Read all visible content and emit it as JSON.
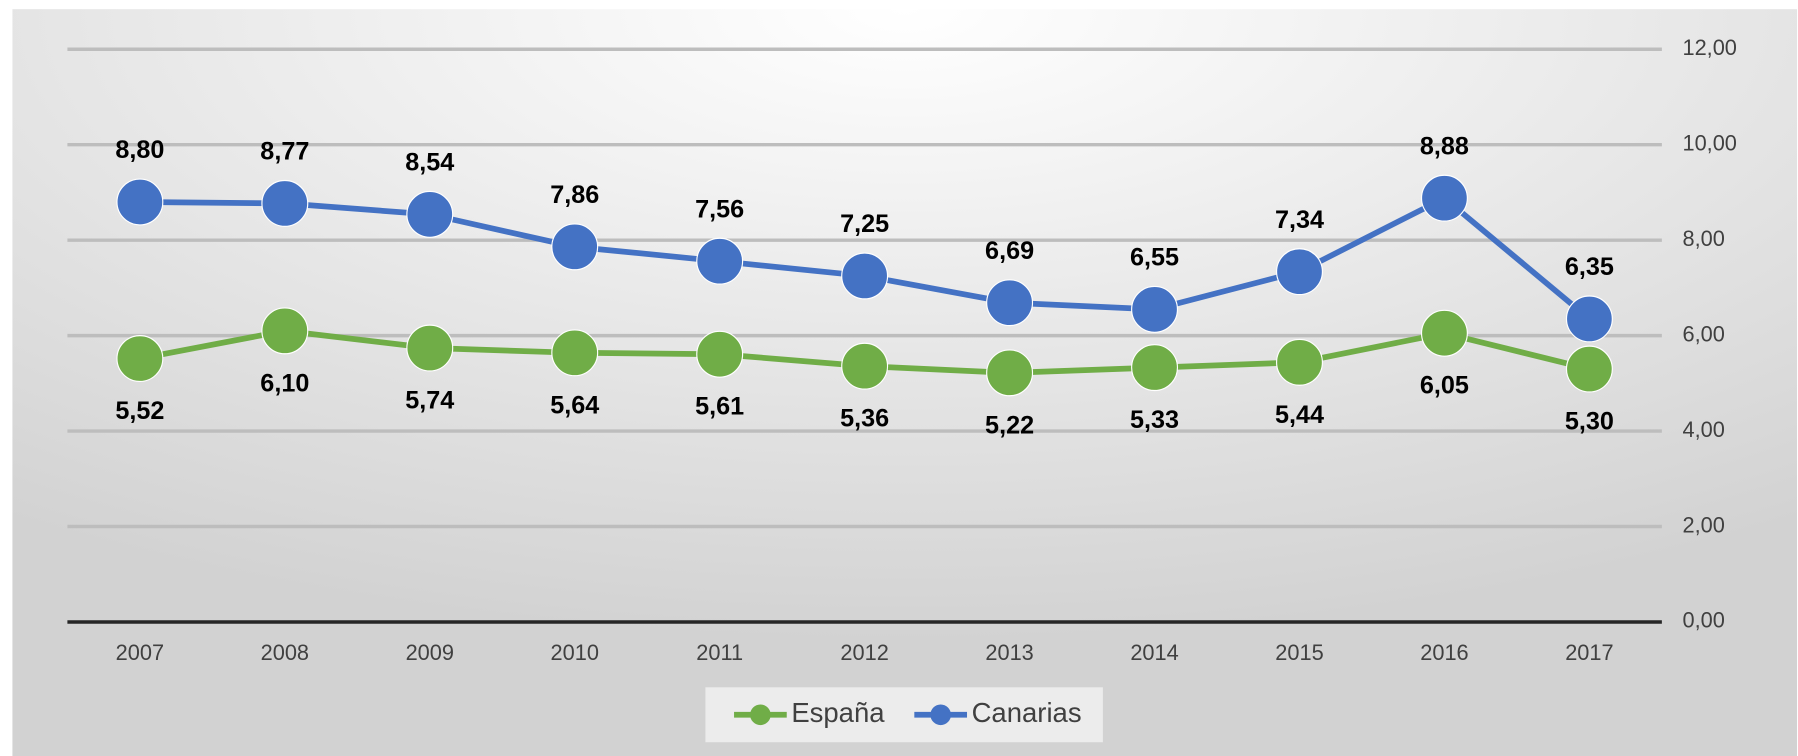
{
  "chart_data": {
    "type": "line",
    "categories": [
      "2007",
      "2008",
      "2009",
      "2010",
      "2011",
      "2012",
      "2013",
      "2014",
      "2015",
      "2016",
      "2017"
    ],
    "series": [
      {
        "name": "España",
        "color": "#70ad47",
        "label_position": "below",
        "values": [
          5.52,
          6.1,
          5.74,
          5.64,
          5.61,
          5.36,
          5.22,
          5.33,
          5.44,
          6.05,
          5.3
        ],
        "value_labels": [
          "5,52",
          "6,10",
          "5,74",
          "5,64",
          "5,61",
          "5,36",
          "5,22",
          "5,33",
          "5,44",
          "6,05",
          "5,30"
        ]
      },
      {
        "name": "Canarias",
        "color": "#4472c4",
        "label_position": "above",
        "values": [
          8.8,
          8.77,
          8.54,
          7.86,
          7.56,
          7.25,
          6.69,
          6.55,
          7.34,
          8.88,
          6.35
        ],
        "value_labels": [
          "8,80",
          "8,77",
          "8,54",
          "7,86",
          "7,56",
          "7,25",
          "6,69",
          "6,55",
          "7,34",
          "8,88",
          "6,35"
        ]
      }
    ],
    "ylim": [
      0,
      12
    ],
    "yticks": [
      {
        "value": 0,
        "label": "0,00"
      },
      {
        "value": 2,
        "label": "2,00"
      },
      {
        "value": 4,
        "label": "4,00"
      },
      {
        "value": 6,
        "label": "6,00"
      },
      {
        "value": 8,
        "label": "8,00"
      },
      {
        "value": 10,
        "label": "10,00"
      },
      {
        "value": 12,
        "label": "12,00"
      }
    ],
    "y_axis_position": "right",
    "grid": true,
    "legend": "bottom"
  }
}
